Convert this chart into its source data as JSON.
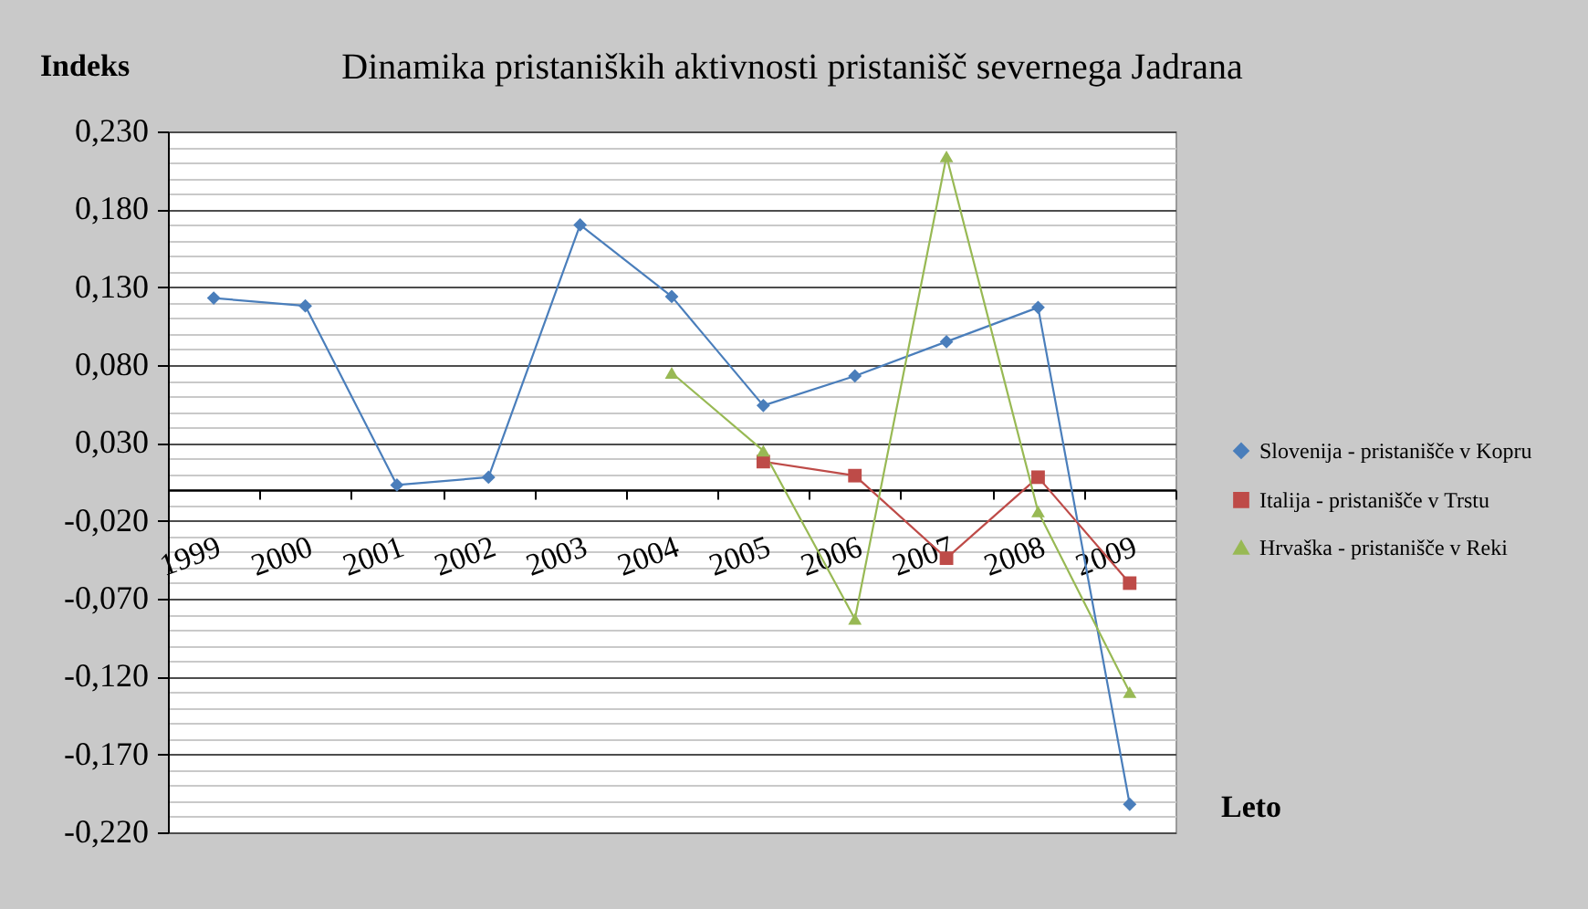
{
  "chart_data": {
    "type": "line",
    "title": "Dinamika pristaniških aktivnosti pristanišč severnega Jadrana",
    "ylabel": "Indeks",
    "xlabel": "Leto",
    "categories": [
      "1999",
      "2000",
      "2001",
      "2002",
      "2003",
      "2004",
      "2005",
      "2006",
      "2007",
      "2008",
      "2009"
    ],
    "series": [
      {
        "name": "Slovenija - pristanišče v Kopru",
        "color": "#4a7ebb",
        "marker": "diamond",
        "values": [
          0.123,
          0.118,
          0.003,
          0.008,
          0.17,
          0.124,
          0.054,
          0.073,
          0.095,
          0.117,
          -0.202
        ]
      },
      {
        "name": "Italija - pristanišče v Trstu",
        "color": "#be4b48",
        "marker": "square",
        "values": [
          null,
          null,
          null,
          null,
          null,
          null,
          0.018,
          0.009,
          -0.044,
          0.008,
          -0.06
        ]
      },
      {
        "name": "Hrvaška - pristanišče v Reki",
        "color": "#98b954",
        "marker": "triangle",
        "values": [
          null,
          null,
          null,
          null,
          null,
          0.075,
          0.025,
          -0.083,
          0.214,
          -0.014,
          -0.13
        ]
      }
    ],
    "ylim": [
      -0.22,
      0.23
    ],
    "yticks": [
      {
        "value": -0.22,
        "label": "-0,220"
      },
      {
        "value": -0.21,
        "label": null
      },
      {
        "value": -0.2,
        "label": null
      },
      {
        "value": -0.19,
        "label": null
      },
      {
        "value": -0.18,
        "label": null
      },
      {
        "value": -0.17,
        "label": "-0,170"
      },
      {
        "value": -0.16,
        "label": null
      },
      {
        "value": -0.15,
        "label": null
      },
      {
        "value": -0.14,
        "label": null
      },
      {
        "value": -0.13,
        "label": null
      },
      {
        "value": -0.12,
        "label": "-0,120"
      },
      {
        "value": -0.11,
        "label": null
      },
      {
        "value": -0.1,
        "label": null
      },
      {
        "value": -0.09,
        "label": null
      },
      {
        "value": -0.08,
        "label": null
      },
      {
        "value": -0.07,
        "label": "-0,070"
      },
      {
        "value": -0.06,
        "label": null
      },
      {
        "value": -0.05,
        "label": null
      },
      {
        "value": -0.04,
        "label": null
      },
      {
        "value": -0.03,
        "label": null
      },
      {
        "value": -0.02,
        "label": "-0,020"
      },
      {
        "value": -0.01,
        "label": null
      },
      {
        "value": 0,
        "label": null
      },
      {
        "value": 0.01,
        "label": null
      },
      {
        "value": 0.02,
        "label": null
      },
      {
        "value": 0.03,
        "label": "0,030"
      },
      {
        "value": 0.04,
        "label": null
      },
      {
        "value": 0.05,
        "label": null
      },
      {
        "value": 0.06,
        "label": null
      },
      {
        "value": 0.07,
        "label": null
      },
      {
        "value": 0.08,
        "label": "0,080"
      },
      {
        "value": 0.09,
        "label": null
      },
      {
        "value": 0.1,
        "label": null
      },
      {
        "value": 0.11,
        "label": null
      },
      {
        "value": 0.12,
        "label": null
      },
      {
        "value": 0.13,
        "label": "0,130"
      },
      {
        "value": 0.14,
        "label": null
      },
      {
        "value": 0.15,
        "label": null
      },
      {
        "value": 0.16,
        "label": null
      },
      {
        "value": 0.17,
        "label": null
      },
      {
        "value": 0.18,
        "label": "0,180"
      },
      {
        "value": 0.19,
        "label": null
      },
      {
        "value": 0.2,
        "label": null
      },
      {
        "value": 0.21,
        "label": null
      },
      {
        "value": 0.22,
        "label": null
      },
      {
        "value": 0.23,
        "label": "0,230"
      }
    ],
    "grid": "y",
    "legend": "right",
    "line_style": "solid"
  }
}
